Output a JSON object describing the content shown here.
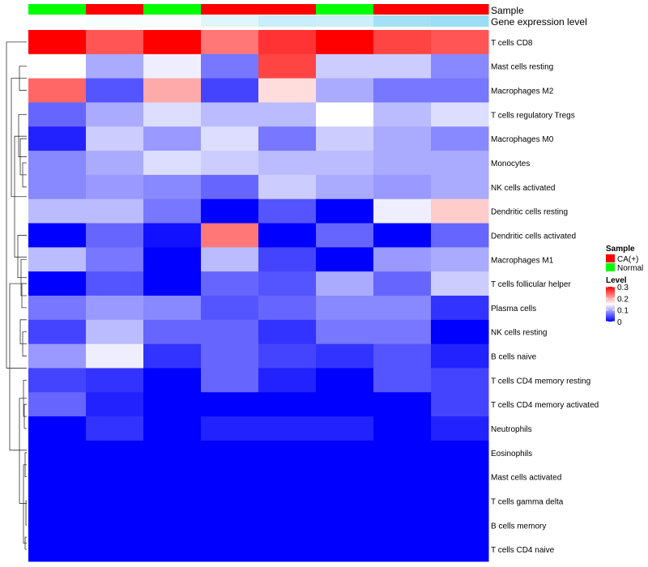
{
  "chart_data": {
    "type": "heatmap",
    "annotation_tracks": {
      "sample_label": "Sample",
      "expression_label": "Gene expression level",
      "sample": [
        "Normal",
        "CA(+)",
        "Normal",
        "CA(+)",
        "CA(+)",
        "Normal",
        "CA(+)",
        "CA(+)"
      ],
      "expression": [
        0.02,
        0.05,
        0.03,
        0.18,
        0.32,
        0.3,
        0.55,
        0.6
      ]
    },
    "rows": [
      "T cells CD8",
      "Mast cells resting",
      "Macrophages M2",
      "T cells regulatory  Tregs",
      "Macrophages M0",
      "Monocytes",
      "NK cells activated",
      "Dendritic cells resting",
      "Dendritic cells activated",
      "Macrophages M1",
      "T cells follicular helper",
      "Plasma cells",
      "NK cells resting",
      "B cells naive",
      "T cells CD4 memory resting",
      "T cells CD4 memory activated",
      "Neutrophils",
      "Eosinophils",
      "Mast cells activated",
      "T cells gamma delta",
      "B cells memory",
      "T cells CD4 naive"
    ],
    "values": [
      [
        0.3,
        0.25,
        0.3,
        0.23,
        0.27,
        0.3,
        0.26,
        0.25
      ],
      [
        0.15,
        0.1,
        0.14,
        0.07,
        0.26,
        0.12,
        0.12,
        0.08
      ],
      [
        0.24,
        0.05,
        0.2,
        0.04,
        0.17,
        0.1,
        0.07,
        0.07
      ],
      [
        0.06,
        0.1,
        0.13,
        0.11,
        0.11,
        0.15,
        0.11,
        0.13
      ],
      [
        0.02,
        0.12,
        0.09,
        0.13,
        0.07,
        0.12,
        0.1,
        0.08
      ],
      [
        0.08,
        0.1,
        0.13,
        0.12,
        0.11,
        0.11,
        0.1,
        0.1
      ],
      [
        0.08,
        0.09,
        0.08,
        0.06,
        0.12,
        0.1,
        0.09,
        0.1
      ],
      [
        0.11,
        0.11,
        0.07,
        0.0,
        0.05,
        0.0,
        0.14,
        0.18
      ],
      [
        0.0,
        0.06,
        0.01,
        0.23,
        0.0,
        0.06,
        0.0,
        0.06
      ],
      [
        0.11,
        0.07,
        0.0,
        0.11,
        0.04,
        0.0,
        0.09,
        0.1
      ],
      [
        0.0,
        0.05,
        0.0,
        0.06,
        0.05,
        0.1,
        0.06,
        0.12
      ],
      [
        0.07,
        0.09,
        0.08,
        0.05,
        0.06,
        0.08,
        0.08,
        0.03
      ],
      [
        0.04,
        0.11,
        0.06,
        0.06,
        0.03,
        0.07,
        0.07,
        0.0
      ],
      [
        0.09,
        0.14,
        0.03,
        0.06,
        0.04,
        0.03,
        0.05,
        0.02
      ],
      [
        0.04,
        0.03,
        0.0,
        0.06,
        0.02,
        0.0,
        0.05,
        0.04
      ],
      [
        0.06,
        0.02,
        0.0,
        0.0,
        0.0,
        0.0,
        0.0,
        0.04
      ],
      [
        0.0,
        0.03,
        0.0,
        0.02,
        0.02,
        0.02,
        0.0,
        0.02
      ],
      [
        0.0,
        0.0,
        0.0,
        0.0,
        0.0,
        0.0,
        0.0,
        0.0
      ],
      [
        0.0,
        0.0,
        0.0,
        0.0,
        0.0,
        0.0,
        0.0,
        0.0
      ],
      [
        0.0,
        0.0,
        0.0,
        0.0,
        0.0,
        0.0,
        0.0,
        0.0
      ],
      [
        0.0,
        0.0,
        0.0,
        0.0,
        0.0,
        0.0,
        0.0,
        0.0
      ],
      [
        0.0,
        0.0,
        0.0,
        0.0,
        0.0,
        0.0,
        0.0,
        0.0
      ]
    ],
    "color_scale": {
      "min": 0,
      "mid": 0.15,
      "max": 0.3,
      "low_color": "#0000ff",
      "mid_color": "#ffffff",
      "high_color": "#ff0000"
    },
    "legend": {
      "sample_title": "Sample",
      "sample_entries": [
        {
          "label": "CA(+)",
          "color": "#ff0000"
        },
        {
          "label": "Normal",
          "color": "#00ff00"
        }
      ],
      "level_title": "Level",
      "level_ticks": [
        {
          "label": "0.3",
          "value": 0.3
        },
        {
          "label": "0.2",
          "value": 0.2
        },
        {
          "label": "0.1",
          "value": 0.1
        },
        {
          "label": "0",
          "value": 0
        }
      ],
      "position": "right"
    },
    "expression_track_colors": {
      "low": "#ffffff",
      "high": "#56c8ef"
    },
    "dendrogram": "row clustering tree on left"
  }
}
